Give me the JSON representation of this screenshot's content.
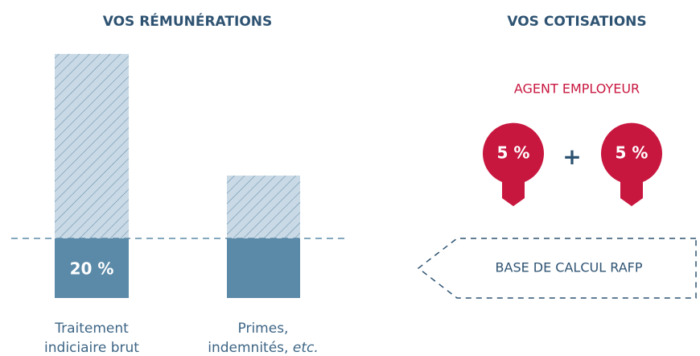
{
  "left": {
    "title": "VOS RÉMUNÉRATIONS",
    "items": [
      {
        "value_label": "20 %",
        "caption": [
          "Traitement",
          "indiciaire brut"
        ]
      },
      {
        "caption": [
          "Primes,",
          "indemnités,",
          "etc."
        ]
      }
    ]
  },
  "right": {
    "title": "VOS COTISATIONS",
    "subtitle": "AGENT EMPLOYEUR",
    "rates": [
      "5 %",
      "5 %"
    ],
    "operator": "+",
    "base": "BASE DE CALCUL RAFP"
  }
}
